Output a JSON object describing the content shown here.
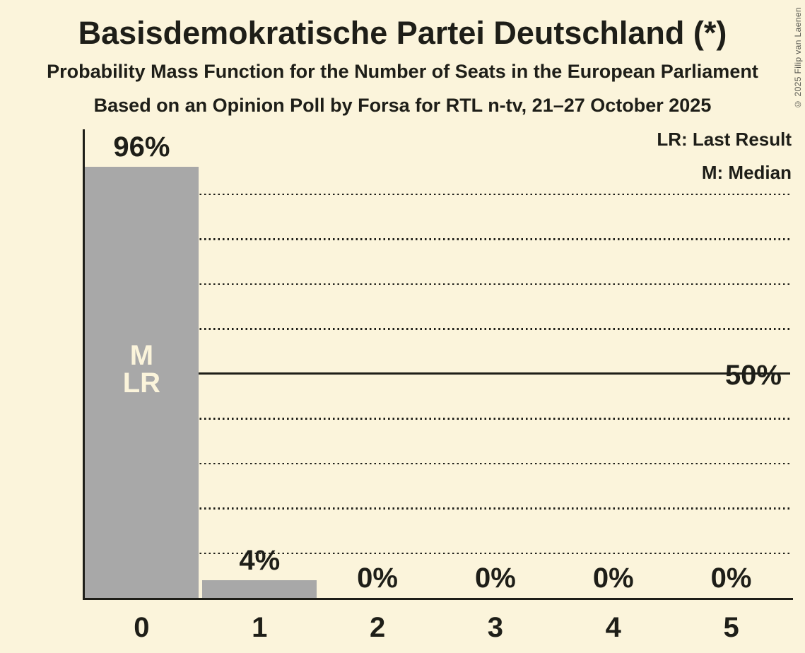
{
  "title": "Basisdemokratische Partei Deutschland (*)",
  "subtitle": "Probability Mass Function for the Number of Seats in the European Parliament",
  "poll_info": "Based on an Opinion Poll by Forsa for RTL n-tv, 21–27 October 2025",
  "copyright": "© 2025 Filip van Laenen",
  "legend": {
    "last_result": "LR: Last Result",
    "median": "M: Median"
  },
  "colors": {
    "background": "#FBF4DB",
    "bar": "#A8A8A8",
    "text": "#1E1E18",
    "bar_annotation": "#FBF4DB"
  },
  "chart_data": {
    "type": "bar",
    "title": "Basisdemokratische Partei Deutschland (*)",
    "categories": [
      "0",
      "1",
      "2",
      "3",
      "4",
      "5"
    ],
    "values": [
      96,
      4,
      0,
      0,
      0,
      0
    ],
    "value_labels": [
      "96%",
      "4%",
      "0%",
      "0%",
      "0%",
      "0%"
    ],
    "ylim": [
      0,
      100
    ],
    "ytick_label": "50%",
    "ytick_value": 50,
    "dotted_gridlines_pct": [
      10,
      20,
      30,
      40,
      60,
      70,
      80,
      90
    ],
    "solid_gridline_pct": 50,
    "grid": true,
    "legend_position": "top-right",
    "bar_annotations": [
      {
        "category": "0",
        "labels": [
          "M",
          "LR"
        ]
      }
    ]
  }
}
